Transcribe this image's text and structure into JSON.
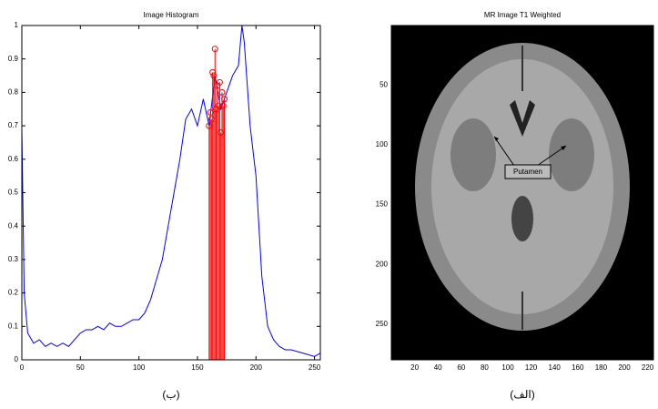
{
  "chart_data": [
    {
      "type": "line",
      "title": "Image Histogram",
      "xlim": [
        0,
        255
      ],
      "ylim": [
        0,
        1
      ],
      "xticks": [
        0,
        50,
        100,
        150,
        200,
        250
      ],
      "yticks": [
        0,
        0.1,
        0.2,
        0.3,
        0.4,
        0.5,
        0.6,
        0.7,
        0.8,
        0.9,
        1
      ],
      "series": [
        {
          "kind": "line",
          "color": "#0000ff",
          "x": [
            0,
            2,
            5,
            10,
            15,
            20,
            25,
            30,
            35,
            40,
            45,
            50,
            55,
            60,
            65,
            70,
            75,
            80,
            85,
            90,
            95,
            100,
            105,
            110,
            115,
            120,
            125,
            130,
            135,
            140,
            145,
            150,
            155,
            160,
            165,
            170,
            175,
            180,
            185,
            188,
            190,
            195,
            200,
            205,
            210,
            215,
            220,
            225,
            230,
            240,
            250,
            255
          ],
          "values": [
            0.69,
            0.2,
            0.08,
            0.05,
            0.06,
            0.04,
            0.05,
            0.04,
            0.05,
            0.04,
            0.06,
            0.08,
            0.09,
            0.09,
            0.1,
            0.09,
            0.11,
            0.1,
            0.1,
            0.11,
            0.12,
            0.12,
            0.14,
            0.18,
            0.24,
            0.3,
            0.4,
            0.5,
            0.6,
            0.72,
            0.75,
            0.7,
            0.78,
            0.7,
            0.85,
            0.75,
            0.8,
            0.85,
            0.88,
            1.0,
            0.95,
            0.7,
            0.55,
            0.25,
            0.1,
            0.06,
            0.04,
            0.03,
            0.03,
            0.02,
            0.01,
            0.02
          ]
        },
        {
          "kind": "stem",
          "color": "#ff0000",
          "x": [
            160,
            161,
            162,
            163,
            164,
            165,
            166,
            167,
            168,
            169,
            170,
            171,
            172,
            173
          ],
          "values": [
            0.7,
            0.74,
            0.72,
            0.86,
            0.85,
            0.93,
            0.75,
            0.82,
            0.76,
            0.83,
            0.68,
            0.8,
            0.76,
            0.78
          ]
        }
      ]
    },
    {
      "type": "image",
      "title": "MR Image T1 Weighted",
      "xlim": [
        0,
        225
      ],
      "ylim": [
        0,
        280
      ],
      "xticks": [
        20,
        40,
        60,
        80,
        100,
        120,
        140,
        160,
        180,
        200,
        220
      ],
      "yticks": [
        50,
        100,
        150,
        200,
        250
      ],
      "annotation": "Putamen"
    }
  ],
  "captions": [
    "(ب)",
    "(الف)"
  ]
}
